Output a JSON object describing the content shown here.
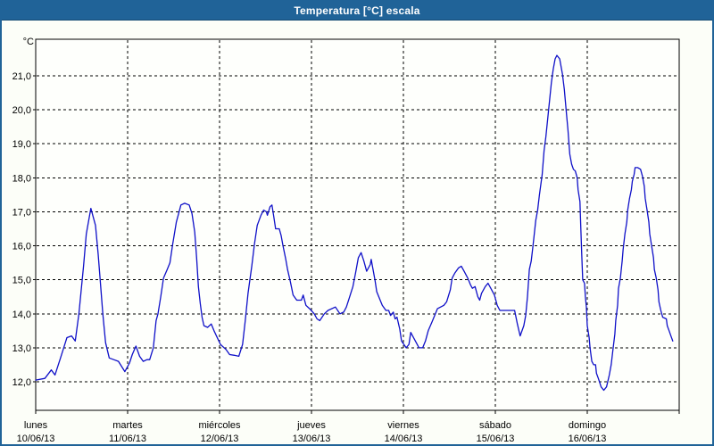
{
  "window": {
    "title": "Temperatura [°C] escala"
  },
  "colors": {
    "frame": "#206398",
    "titlebar_bg": "#206398",
    "titlebar_text": "#ffffff",
    "background": "#fcfef8",
    "plot_background": "#fefffc",
    "plot_border": "#000000",
    "gridline": "#000000",
    "line": "#0f10c8"
  },
  "chart_data": {
    "type": "line",
    "title": "Temperatura [°C] escala",
    "xlabel": "",
    "ylabel": "°C",
    "grid": "dashed-black",
    "legend": "none",
    "ylim": [
      11.2,
      22.1
    ],
    "x_unit": "days since 10/06/13 00:00",
    "y_axis": {
      "unit_label": "°C",
      "tick_values": [
        21,
        20,
        19,
        18,
        17,
        16,
        15,
        14,
        13,
        12
      ],
      "tick_labels": [
        "21,0",
        "20,0",
        "19,0",
        "18,0",
        "17,0",
        "16,0",
        "15,0",
        "14,0",
        "13,0",
        "12,0"
      ]
    },
    "x_axis": {
      "ticks": [
        {
          "day": "lunes",
          "date": "10/06/13"
        },
        {
          "day": "martes",
          "date": "11/06/13"
        },
        {
          "day": "miércoles",
          "date": "12/06/13"
        },
        {
          "day": "jueves",
          "date": "13/06/13"
        },
        {
          "day": "viernes",
          "date": "14/06/13"
        },
        {
          "day": "sábado",
          "date": "15/06/13"
        },
        {
          "day": "domingo",
          "date": "16/06/13"
        }
      ]
    },
    "series": [
      {
        "name": "Temperatura [°C]",
        "color": "#0f10c8",
        "points": [
          [
            0.0,
            12.05
          ],
          [
            0.1,
            12.1
          ],
          [
            0.17,
            12.35
          ],
          [
            0.21,
            12.2
          ],
          [
            0.27,
            12.7
          ],
          [
            0.34,
            13.3
          ],
          [
            0.39,
            13.35
          ],
          [
            0.43,
            13.2
          ],
          [
            0.47,
            14.0
          ],
          [
            0.52,
            15.4
          ],
          [
            0.55,
            16.35
          ],
          [
            0.6,
            17.1
          ],
          [
            0.65,
            16.6
          ],
          [
            0.68,
            15.75
          ],
          [
            0.7,
            15.05
          ],
          [
            0.73,
            14.0
          ],
          [
            0.76,
            13.15
          ],
          [
            0.8,
            12.7
          ],
          [
            0.85,
            12.65
          ],
          [
            0.9,
            12.6
          ],
          [
            0.97,
            12.3
          ],
          [
            1.02,
            12.55
          ],
          [
            1.05,
            12.8
          ],
          [
            1.09,
            13.05
          ],
          [
            1.13,
            12.75
          ],
          [
            1.17,
            12.6
          ],
          [
            1.21,
            12.65
          ],
          [
            1.24,
            12.65
          ],
          [
            1.28,
            13.0
          ],
          [
            1.31,
            13.8
          ],
          [
            1.33,
            14.0
          ],
          [
            1.36,
            14.5
          ],
          [
            1.39,
            15.05
          ],
          [
            1.43,
            15.3
          ],
          [
            1.46,
            15.5
          ],
          [
            1.49,
            16.05
          ],
          [
            1.53,
            16.7
          ],
          [
            1.58,
            17.2
          ],
          [
            1.62,
            17.25
          ],
          [
            1.67,
            17.2
          ],
          [
            1.7,
            16.95
          ],
          [
            1.73,
            16.4
          ],
          [
            1.75,
            15.65
          ],
          [
            1.77,
            14.8
          ],
          [
            1.79,
            14.3
          ],
          [
            1.81,
            13.9
          ],
          [
            1.83,
            13.65
          ],
          [
            1.87,
            13.6
          ],
          [
            1.91,
            13.7
          ],
          [
            1.94,
            13.5
          ],
          [
            2.01,
            13.1
          ],
          [
            2.07,
            12.95
          ],
          [
            2.11,
            12.8
          ],
          [
            2.16,
            12.78
          ],
          [
            2.21,
            12.75
          ],
          [
            2.25,
            13.1
          ],
          [
            2.28,
            13.8
          ],
          [
            2.31,
            14.6
          ],
          [
            2.35,
            15.4
          ],
          [
            2.38,
            16.05
          ],
          [
            2.41,
            16.6
          ],
          [
            2.45,
            16.9
          ],
          [
            2.48,
            17.05
          ],
          [
            2.51,
            17.0
          ],
          [
            2.52,
            16.9
          ],
          [
            2.55,
            17.15
          ],
          [
            2.57,
            17.2
          ],
          [
            2.59,
            16.85
          ],
          [
            2.61,
            16.5
          ],
          [
            2.65,
            16.5
          ],
          [
            2.67,
            16.3
          ],
          [
            2.69,
            16.0
          ],
          [
            2.72,
            15.6
          ],
          [
            2.74,
            15.3
          ],
          [
            2.77,
            14.95
          ],
          [
            2.8,
            14.55
          ],
          [
            2.84,
            14.4
          ],
          [
            2.89,
            14.4
          ],
          [
            2.91,
            14.55
          ],
          [
            2.94,
            14.25
          ],
          [
            2.98,
            14.15
          ],
          [
            3.03,
            14.0
          ],
          [
            3.06,
            13.85
          ],
          [
            3.09,
            13.8
          ],
          [
            3.14,
            14.0
          ],
          [
            3.18,
            14.1
          ],
          [
            3.26,
            14.2
          ],
          [
            3.31,
            14.0
          ],
          [
            3.35,
            14.05
          ],
          [
            3.38,
            14.2
          ],
          [
            3.41,
            14.45
          ],
          [
            3.45,
            14.8
          ],
          [
            3.48,
            15.2
          ],
          [
            3.51,
            15.65
          ],
          [
            3.54,
            15.8
          ],
          [
            3.57,
            15.55
          ],
          [
            3.6,
            15.25
          ],
          [
            3.64,
            15.45
          ],
          [
            3.65,
            15.6
          ],
          [
            3.67,
            15.3
          ],
          [
            3.69,
            15.0
          ],
          [
            3.71,
            14.65
          ],
          [
            3.74,
            14.45
          ],
          [
            3.77,
            14.25
          ],
          [
            3.81,
            14.1
          ],
          [
            3.84,
            14.1
          ],
          [
            3.86,
            13.95
          ],
          [
            3.89,
            14.05
          ],
          [
            3.91,
            13.85
          ],
          [
            3.93,
            13.9
          ],
          [
            3.96,
            13.55
          ],
          [
            3.98,
            13.2
          ],
          [
            4.03,
            13.0
          ],
          [
            4.06,
            13.1
          ],
          [
            4.08,
            13.45
          ],
          [
            4.13,
            13.2
          ],
          [
            4.17,
            13.0
          ],
          [
            4.21,
            13.0
          ],
          [
            4.24,
            13.2
          ],
          [
            4.27,
            13.5
          ],
          [
            4.31,
            13.75
          ],
          [
            4.34,
            13.95
          ],
          [
            4.37,
            14.15
          ],
          [
            4.44,
            14.25
          ],
          [
            4.47,
            14.35
          ],
          [
            4.51,
            14.7
          ],
          [
            4.53,
            15.05
          ],
          [
            4.56,
            15.2
          ],
          [
            4.6,
            15.35
          ],
          [
            4.63,
            15.4
          ],
          [
            4.66,
            15.25
          ],
          [
            4.7,
            15.05
          ],
          [
            4.73,
            14.85
          ],
          [
            4.75,
            14.75
          ],
          [
            4.78,
            14.8
          ],
          [
            4.81,
            14.5
          ],
          [
            4.83,
            14.4
          ],
          [
            4.85,
            14.6
          ],
          [
            4.89,
            14.8
          ],
          [
            4.92,
            14.9
          ],
          [
            4.95,
            14.75
          ],
          [
            4.99,
            14.55
          ],
          [
            5.02,
            14.25
          ],
          [
            5.05,
            14.1
          ],
          [
            5.15,
            14.1
          ],
          [
            5.21,
            14.1
          ],
          [
            5.24,
            13.7
          ],
          [
            5.27,
            13.35
          ],
          [
            5.31,
            13.65
          ],
          [
            5.33,
            13.95
          ],
          [
            5.35,
            14.5
          ],
          [
            5.37,
            15.3
          ],
          [
            5.39,
            15.55
          ],
          [
            5.41,
            16.0
          ],
          [
            5.44,
            16.75
          ],
          [
            5.46,
            17.05
          ],
          [
            5.48,
            17.5
          ],
          [
            5.51,
            18.1
          ],
          [
            5.53,
            18.8
          ],
          [
            5.55,
            19.2
          ],
          [
            5.58,
            20.0
          ],
          [
            5.61,
            20.8
          ],
          [
            5.63,
            21.2
          ],
          [
            5.65,
            21.5
          ],
          [
            5.67,
            21.6
          ],
          [
            5.7,
            21.5
          ],
          [
            5.73,
            21.05
          ],
          [
            5.75,
            20.6
          ],
          [
            5.77,
            20.0
          ],
          [
            5.79,
            19.4
          ],
          [
            5.81,
            18.7
          ],
          [
            5.83,
            18.4
          ],
          [
            5.85,
            18.25
          ],
          [
            5.87,
            18.2
          ],
          [
            5.89,
            18.0
          ],
          [
            5.9,
            17.65
          ],
          [
            5.92,
            17.3
          ],
          [
            5.93,
            16.5
          ],
          [
            5.94,
            15.75
          ],
          [
            5.95,
            15.0
          ],
          [
            5.97,
            14.9
          ],
          [
            5.98,
            14.5
          ],
          [
            5.99,
            14.2
          ],
          [
            6.0,
            13.65
          ],
          [
            6.02,
            13.3
          ],
          [
            6.03,
            13.0
          ],
          [
            6.05,
            12.6
          ],
          [
            6.07,
            12.5
          ],
          [
            6.09,
            12.5
          ],
          [
            6.1,
            12.25
          ],
          [
            6.12,
            12.1
          ],
          [
            6.15,
            11.85
          ],
          [
            6.18,
            11.75
          ],
          [
            6.21,
            11.85
          ],
          [
            6.24,
            12.2
          ],
          [
            6.26,
            12.5
          ],
          [
            6.28,
            12.95
          ],
          [
            6.3,
            13.4
          ],
          [
            6.31,
            13.8
          ],
          [
            6.33,
            14.25
          ],
          [
            6.34,
            14.75
          ],
          [
            6.36,
            15.05
          ],
          [
            6.38,
            15.55
          ],
          [
            6.39,
            15.9
          ],
          [
            6.41,
            16.35
          ],
          [
            6.43,
            16.7
          ],
          [
            6.44,
            17.05
          ],
          [
            6.46,
            17.4
          ],
          [
            6.48,
            17.65
          ],
          [
            6.49,
            17.9
          ],
          [
            6.51,
            18.1
          ],
          [
            6.52,
            18.3
          ],
          [
            6.55,
            18.3
          ],
          [
            6.58,
            18.25
          ],
          [
            6.6,
            18.05
          ],
          [
            6.62,
            17.75
          ],
          [
            6.63,
            17.4
          ],
          [
            6.65,
            17.05
          ],
          [
            6.67,
            16.7
          ],
          [
            6.68,
            16.35
          ],
          [
            6.7,
            16.0
          ],
          [
            6.72,
            15.65
          ],
          [
            6.73,
            15.3
          ],
          [
            6.75,
            15.05
          ],
          [
            6.77,
            14.7
          ],
          [
            6.78,
            14.35
          ],
          [
            6.8,
            14.1
          ],
          [
            6.82,
            13.9
          ],
          [
            6.86,
            13.85
          ],
          [
            6.87,
            13.65
          ],
          [
            6.89,
            13.5
          ],
          [
            6.91,
            13.35
          ],
          [
            6.93,
            13.2
          ]
        ]
      }
    ]
  }
}
